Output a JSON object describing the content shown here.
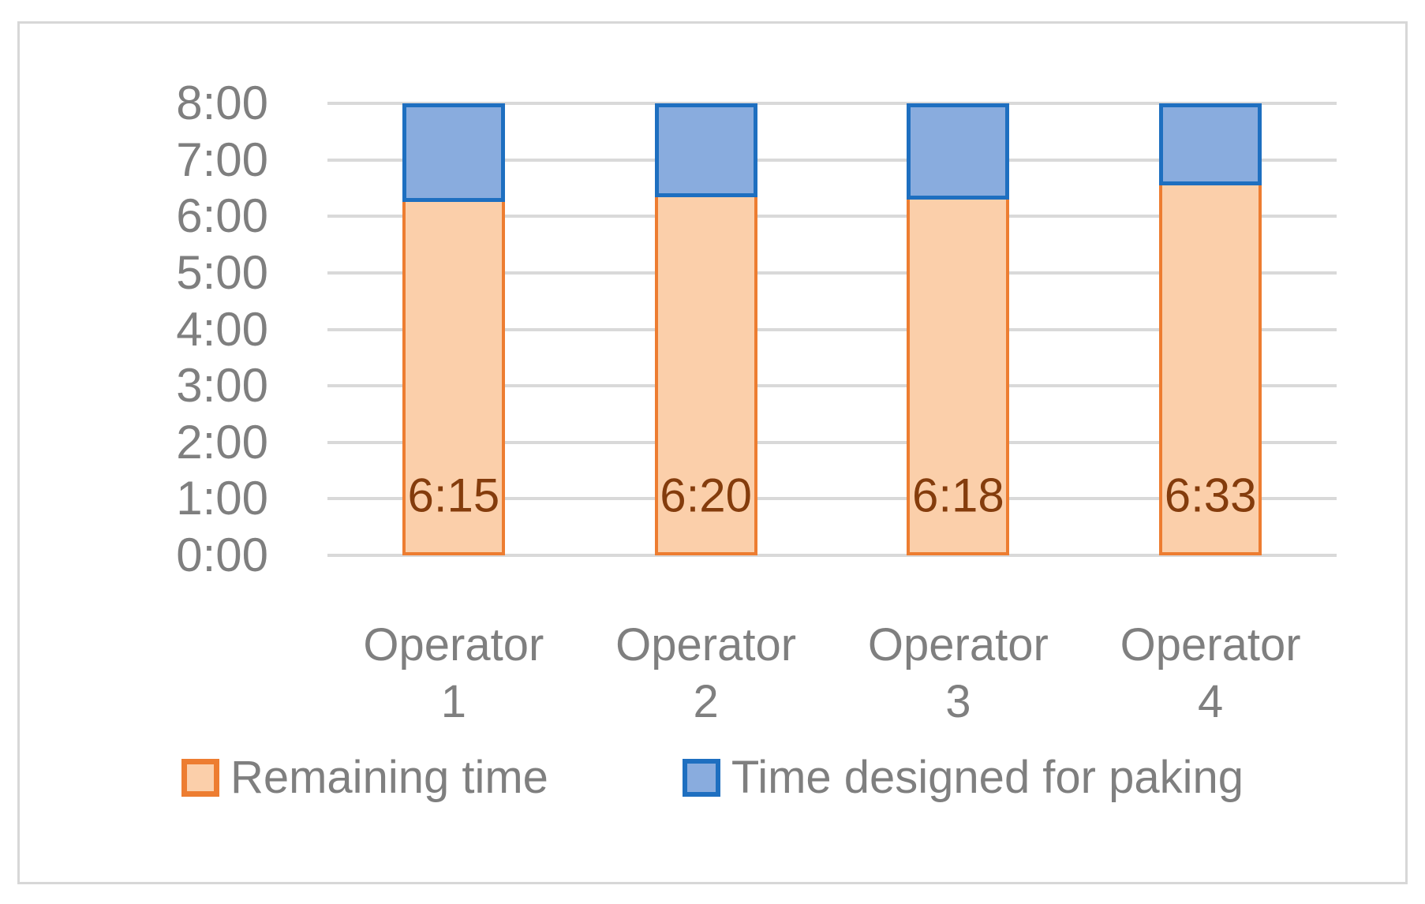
{
  "chart_data": {
    "type": "bar",
    "stacked": true,
    "title": "",
    "xlabel": "",
    "ylabel": "",
    "categories": [
      {
        "line1": "Operator",
        "line2": "1"
      },
      {
        "line1": "Operator",
        "line2": "2"
      },
      {
        "line1": "Operator",
        "line2": "3"
      },
      {
        "line1": "Operator",
        "line2": "4"
      }
    ],
    "series": [
      {
        "name": "Remaining time",
        "fill_color": "#fbcfaa",
        "border_color": "#ed7d31",
        "values_minutes": [
          375,
          380,
          378,
          393
        ],
        "data_labels": [
          "6:15",
          "6:20",
          "6:18",
          "6:33"
        ]
      },
      {
        "name": "Time designed for paking",
        "fill_color": "#89acde",
        "border_color": "#1e6fc0",
        "values_minutes": [
          105,
          100,
          102,
          87
        ]
      }
    ],
    "y_ticks": [
      "8:00",
      "7:00",
      "6:00",
      "5:00",
      "4:00",
      "3:00",
      "2:00",
      "1:00",
      "0:00"
    ],
    "ylim_minutes": [
      0,
      480
    ],
    "grid": true,
    "gridline_color": "#d9d9d9",
    "axis_text_color": "#7f7f7f",
    "data_label_color": "#843c0c",
    "legend_position": "bottom"
  }
}
